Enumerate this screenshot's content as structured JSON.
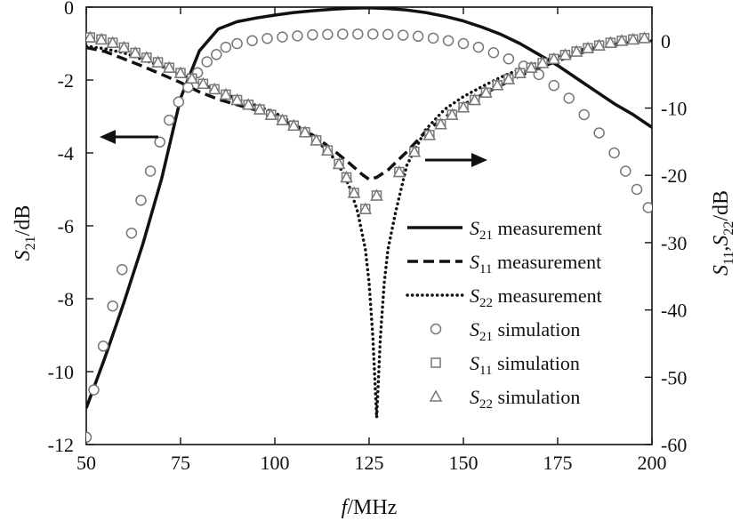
{
  "chart_data": {
    "type": "line",
    "xlabel_italic": "f",
    "xlabel_rest": "/MHz",
    "ylabel_left_italic": "S",
    "ylabel_left_sub": "21",
    "ylabel_left_rest": "/dB",
    "ylabel_right_parts": [
      {
        "t": "S",
        "it": true
      },
      {
        "t": "11",
        "sub": true
      },
      {
        "t": ",",
        "it": false
      },
      {
        "t": "S",
        "it": true
      },
      {
        "t": "22",
        "sub": true
      },
      {
        "t": "/dB",
        "it": false
      }
    ],
    "xlim": [
      50,
      200
    ],
    "ylim_left": [
      -12,
      0
    ],
    "ylim_right": [
      -60,
      5
    ],
    "x_ticks": [
      "50",
      "75",
      "100",
      "125",
      "150",
      "175",
      "200"
    ],
    "y_ticks_left": [
      "0",
      "-2",
      "-4",
      "-6",
      "-8",
      "-10",
      "-12"
    ],
    "y_ticks_right": [
      "0",
      "-10",
      "-20",
      "-30",
      "-40",
      "-50",
      "-60"
    ],
    "legend": {
      "placement": "right",
      "entries": [
        {
          "sym": "S",
          "sub": "21",
          "text": " measurement",
          "style": "solid"
        },
        {
          "sym": "S",
          "sub": "11",
          "text": " measurement",
          "style": "dashed"
        },
        {
          "sym": "S",
          "sub": "22",
          "text": " measurement",
          "style": "dotted"
        },
        {
          "sym": "S",
          "sub": "21",
          "text": " simulation",
          "style": "circle"
        },
        {
          "sym": "S",
          "sub": "11",
          "text": " simulation",
          "style": "square"
        },
        {
          "sym": "S",
          "sub": "22",
          "text": " simulation",
          "style": "triangle"
        }
      ]
    },
    "annotations": [
      {
        "name": "left-arrow",
        "points_to": "left axis"
      },
      {
        "name": "right-arrow",
        "points_to": "right axis"
      }
    ],
    "series": [
      {
        "id": "s21-measurement",
        "axis": "left",
        "style": "solid",
        "x": [
          50,
          55,
          60,
          65,
          70,
          75,
          80,
          85,
          90,
          95,
          100,
          105,
          110,
          115,
          120,
          125,
          130,
          135,
          140,
          145,
          150,
          155,
          160,
          165,
          170,
          175,
          180,
          185,
          190,
          195,
          200
        ],
        "y": [
          -11.0,
          -9.6,
          -8.1,
          -6.5,
          -4.7,
          -2.5,
          -1.2,
          -0.6,
          -0.4,
          -0.3,
          -0.22,
          -0.15,
          -0.1,
          -0.06,
          -0.03,
          -0.02,
          -0.04,
          -0.08,
          -0.15,
          -0.25,
          -0.38,
          -0.55,
          -0.75,
          -1.0,
          -1.3,
          -1.6,
          -1.95,
          -2.3,
          -2.65,
          -2.95,
          -3.3
        ]
      },
      {
        "id": "s11-measurement",
        "axis": "right",
        "style": "dashed",
        "x": [
          50,
          55,
          60,
          65,
          70,
          75,
          80,
          85,
          90,
          95,
          100,
          105,
          110,
          115,
          120,
          123,
          125,
          127,
          130,
          135,
          140,
          145,
          150,
          155,
          160,
          165,
          170,
          175,
          180,
          185,
          190,
          195,
          200
        ],
        "y": [
          -1.0,
          -1.6,
          -2.7,
          -3.8,
          -5.0,
          -6.2,
          -7.6,
          -8.7,
          -9.5,
          -10.3,
          -11.3,
          -12.6,
          -14.0,
          -16.0,
          -18.3,
          -19.8,
          -20.6,
          -20.3,
          -19.2,
          -16.5,
          -13.5,
          -11.4,
          -9.5,
          -8.0,
          -6.6,
          -5.2,
          -4.0,
          -3.0,
          -2.0,
          -1.2,
          -0.7,
          -0.2,
          0.0
        ]
      },
      {
        "id": "s22-measurement",
        "axis": "right",
        "style": "dotted",
        "x": [
          50,
          55,
          60,
          65,
          70,
          75,
          80,
          85,
          90,
          95,
          100,
          105,
          110,
          115,
          118,
          120,
          122,
          124,
          125,
          126,
          127,
          128,
          129,
          130,
          132,
          135,
          140,
          145,
          150,
          155,
          160,
          165,
          170,
          175,
          180,
          185,
          190,
          195,
          200
        ],
        "y": [
          -0.8,
          -1.2,
          -1.8,
          -2.8,
          -3.8,
          -5.0,
          -6.3,
          -7.5,
          -8.6,
          -9.6,
          -10.7,
          -12.3,
          -14.2,
          -17.0,
          -19.5,
          -22.0,
          -25.5,
          -31.0,
          -36.0,
          -44.0,
          -56.0,
          -44.0,
          -36.0,
          -31.0,
          -25.5,
          -18.5,
          -13.2,
          -10.2,
          -8.3,
          -6.8,
          -5.4,
          -4.2,
          -3.2,
          -2.3,
          -1.5,
          -0.9,
          -0.5,
          -0.2,
          0.0
        ]
      },
      {
        "id": "s21-simulation",
        "axis": "left",
        "style": "circle",
        "x": [
          50,
          52,
          54.5,
          57,
          59.5,
          62,
          64.5,
          67,
          69.5,
          72,
          74.5,
          77,
          79.5,
          82,
          84.5,
          87,
          90,
          94,
          98,
          102,
          106,
          110,
          114,
          118,
          122,
          126,
          130,
          134,
          138,
          142,
          146,
          150,
          154,
          158,
          162,
          166,
          170,
          174,
          178,
          182,
          186,
          190,
          193,
          196,
          199
        ],
        "y": [
          -11.8,
          -10.5,
          -9.3,
          -8.2,
          -7.2,
          -6.2,
          -5.3,
          -4.5,
          -3.7,
          -3.1,
          -2.6,
          -2.2,
          -1.8,
          -1.5,
          -1.3,
          -1.1,
          -1.0,
          -0.92,
          -0.86,
          -0.82,
          -0.79,
          -0.76,
          -0.75,
          -0.74,
          -0.74,
          -0.74,
          -0.75,
          -0.77,
          -0.8,
          -0.85,
          -0.92,
          -1.0,
          -1.1,
          -1.25,
          -1.42,
          -1.62,
          -1.85,
          -2.15,
          -2.5,
          -2.95,
          -3.45,
          -4.0,
          -4.5,
          -5.0,
          -5.5
        ]
      },
      {
        "id": "s11-simulation",
        "axis": "right",
        "style": "square",
        "x": [
          51,
          54,
          57,
          60,
          63,
          66,
          69,
          72,
          75,
          78,
          81,
          84,
          87,
          90,
          93,
          96,
          99,
          102,
          105,
          108,
          111,
          114,
          117,
          119,
          121,
          124,
          127,
          133,
          137,
          141,
          144,
          147,
          150,
          153,
          156,
          159,
          162,
          165,
          168,
          171,
          174,
          177,
          180,
          183,
          186,
          189,
          192,
          195,
          198
        ],
        "y": [
          0.5,
          0.2,
          -0.3,
          -1.0,
          -1.8,
          -2.5,
          -3.2,
          -4.0,
          -4.8,
          -5.6,
          -6.4,
          -7.2,
          -8.0,
          -8.8,
          -9.5,
          -10.2,
          -11.0,
          -11.8,
          -12.6,
          -13.6,
          -14.8,
          -16.3,
          -18.3,
          -20.3,
          -22.6,
          -25.0,
          -23.0,
          -19.5,
          -16.5,
          -14.0,
          -12.4,
          -11.0,
          -9.9,
          -8.8,
          -7.7,
          -6.6,
          -5.7,
          -4.8,
          -4.0,
          -3.3,
          -2.7,
          -2.1,
          -1.6,
          -1.1,
          -0.7,
          -0.3,
          0.0,
          0.2,
          0.4
        ]
      },
      {
        "id": "s22-simulation",
        "axis": "right",
        "style": "triangle",
        "x": [
          51,
          54,
          57,
          60,
          63,
          66,
          69,
          72,
          75,
          78,
          81,
          84,
          87,
          90,
          93,
          96,
          99,
          102,
          105,
          108,
          111,
          114,
          117,
          119,
          121,
          124,
          127,
          133,
          137,
          141,
          144,
          147,
          150,
          153,
          156,
          159,
          162,
          165,
          168,
          171,
          174,
          177,
          180,
          183,
          186,
          189,
          192,
          195,
          198
        ],
        "y": [
          0.5,
          0.2,
          -0.3,
          -1.0,
          -1.8,
          -2.5,
          -3.2,
          -4.0,
          -4.8,
          -5.6,
          -6.4,
          -7.2,
          -8.0,
          -8.8,
          -9.5,
          -10.2,
          -11.0,
          -11.8,
          -12.6,
          -13.6,
          -14.8,
          -16.3,
          -18.3,
          -20.3,
          -22.6,
          -25.0,
          -23.0,
          -19.5,
          -16.5,
          -14.0,
          -12.4,
          -11.0,
          -9.9,
          -8.8,
          -7.7,
          -6.6,
          -5.7,
          -4.8,
          -4.0,
          -3.3,
          -2.7,
          -2.1,
          -1.6,
          -1.1,
          -0.7,
          -0.3,
          0.0,
          0.2,
          0.4
        ]
      }
    ]
  }
}
